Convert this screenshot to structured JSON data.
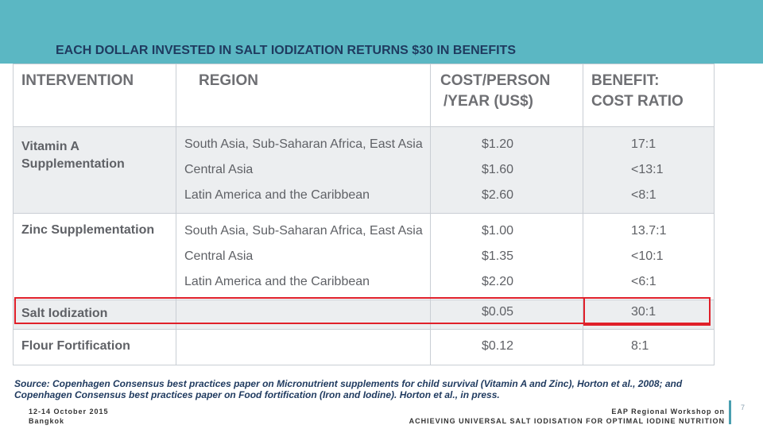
{
  "slide": {
    "title": "EACH DOLLAR INVESTED IN SALT IODIZATION RETURNS $30 IN BENEFITS",
    "banner_color": "#5bb7c3",
    "highlight_color": "#e0202a"
  },
  "table": {
    "headers": {
      "intervention": "INTERVENTION",
      "region": "REGION",
      "cost_line1": "COST/PERSON",
      "cost_line2": "/YEAR (US$)",
      "benefit_line1": "BENEFIT:",
      "benefit_line2": "COST RATIO"
    },
    "vitamin_a": {
      "label_line1": "Vitamin A",
      "label_line2": "Supplementation",
      "regions": [
        "South Asia, Sub-Saharan Africa, East Asia",
        "Central Asia",
        "Latin America and the Caribbean"
      ],
      "costs": [
        "$1.20",
        "$1.60",
        "$2.60"
      ],
      "ratios": [
        "17:1",
        "<13:1",
        "<8:1"
      ]
    },
    "zinc": {
      "label": "Zinc  Supplementation",
      "regions": [
        "South Asia, Sub-Saharan Africa,  East Asia",
        "Central Asia",
        "Latin America and the Caribbean"
      ],
      "costs": [
        "$1.00",
        "$1.35",
        "$2.20"
      ],
      "ratios": [
        "13.7:1",
        "<10:1",
        "<6:1"
      ]
    },
    "salt": {
      "label": "Salt Iodization",
      "cost": "$0.05",
      "ratio": "30:1"
    },
    "flour": {
      "label": "Flour Fortification",
      "cost": "$0.12",
      "ratio": "8:1"
    }
  },
  "source": "Source: Copenhagen Consensus best practices paper on Micronutrient supplements for child survival (Vitamin A and Zinc), Horton et al., 2008; and Copenhagen Consensus best practices paper on Food fortification (Iron and Iodine). Horton et al., in press.",
  "footer": {
    "date": "12-14 October 2015",
    "location": "Bangkok",
    "event_line1": "EAP Regional Workshop on",
    "event_line2": "ACHIEVING UNIVERSAL SALT IODISATION FOR OPTIMAL IODINE NUTRITION",
    "page": "7"
  }
}
